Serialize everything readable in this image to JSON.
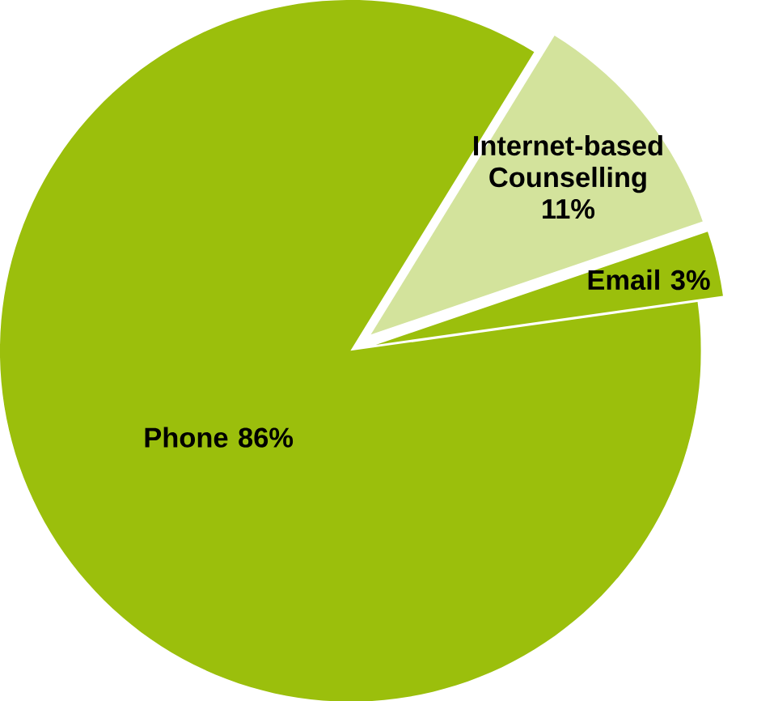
{
  "chart_data": {
    "type": "pie",
    "categories": [
      "Phone",
      "Internet-based Counselling",
      "Email"
    ],
    "values": [
      86,
      11,
      3
    ],
    "value_labels": [
      "86%",
      "11%",
      "3%"
    ],
    "colors": [
      "#9bbf0c",
      "#d3e39c",
      "#9bbf0c"
    ]
  }
}
